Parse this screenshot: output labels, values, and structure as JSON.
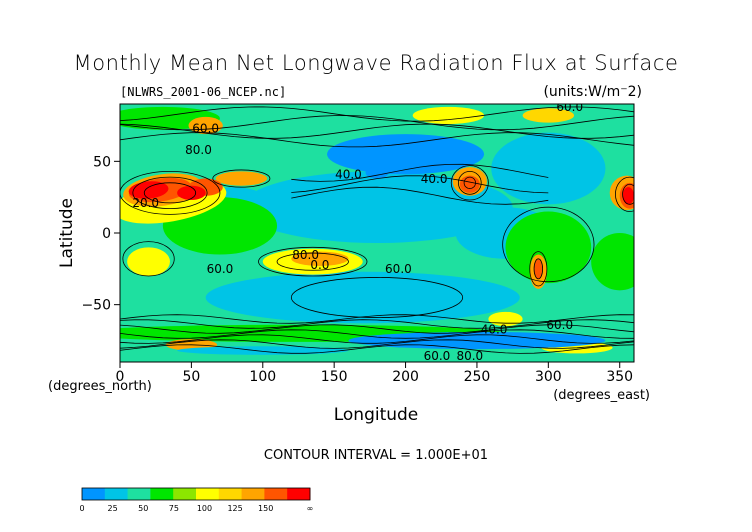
{
  "chart_data": {
    "type": "heatmap",
    "title": "Monthly Mean Net Longwave Radiation Flux at Surface",
    "source_file": "[NLWRS_2001-06_NCEP.nc]",
    "units_label": "(units:W/m⁻2)",
    "xlabel": "Longitude",
    "ylabel": "Latitude",
    "x_unit_label": "(degrees_east)",
    "y_unit_label": "(degrees_north)",
    "xlim": [
      0,
      360
    ],
    "ylim": [
      -90,
      90
    ],
    "x_ticks": [
      0,
      50,
      100,
      150,
      200,
      250,
      300,
      350
    ],
    "y_ticks": [
      50,
      0,
      -50
    ],
    "contour_interval_text": "CONTOUR INTERVAL = 1.000E+01",
    "contour_labels": [
      {
        "text": "60.0",
        "lon": 60,
        "lat": 70
      },
      {
        "text": "60.0",
        "lon": 315,
        "lat": 85
      },
      {
        "text": "80.0",
        "lon": 55,
        "lat": 55
      },
      {
        "text": "40.0",
        "lon": 160,
        "lat": 38
      },
      {
        "text": "40.0",
        "lon": 220,
        "lat": 35
      },
      {
        "text": "20.0",
        "lon": 18,
        "lat": 18
      },
      {
        "text": "80.0",
        "lon": 130,
        "lat": -18
      },
      {
        "text": "0.0",
        "lon": 140,
        "lat": -25
      },
      {
        "text": "60.0",
        "lon": 70,
        "lat": -28
      },
      {
        "text": "60.0",
        "lon": 195,
        "lat": -28
      },
      {
        "text": "40.0",
        "lon": 262,
        "lat": -70
      },
      {
        "text": "60.0",
        "lon": 308,
        "lat": -67
      },
      {
        "text": "60.0",
        "lon": 222,
        "lat": -92
      },
      {
        "text": "80.0",
        "lon": 245,
        "lat": -94
      }
    ],
    "colorbar": {
      "tick_labels": [
        "0",
        "25",
        "50",
        "75",
        "100",
        "125",
        "150",
        "∞"
      ],
      "colors": [
        "#0095ff",
        "#00c4e6",
        "#1ee0a0",
        "#00e600",
        "#8ce600",
        "#ffff00",
        "#ffd700",
        "#ffa500",
        "#ff5500",
        "#ff0000"
      ]
    }
  }
}
